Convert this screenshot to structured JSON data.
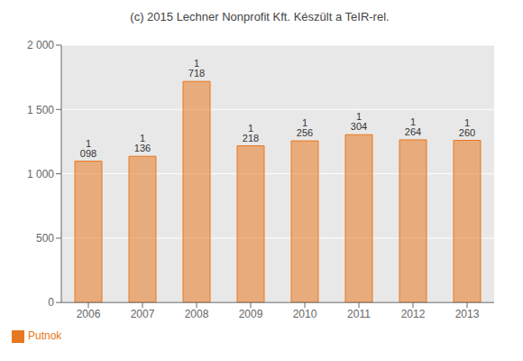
{
  "chart_data": {
    "type": "bar",
    "title": "(c) 2015 Lechner Nonprofit Kft. Készült a TeIR-rel.",
    "categories": [
      "2006",
      "2007",
      "2008",
      "2009",
      "2010",
      "2011",
      "2012",
      "2013"
    ],
    "series": [
      {
        "name": "Putnok",
        "color": "#e87820",
        "values": [
          1098,
          1136,
          1718,
          1218,
          1256,
          1304,
          1264,
          1260
        ],
        "value_labels": [
          "1 098",
          "1 136",
          "1 718",
          "1 218",
          "1 256",
          "1 304",
          "1 264",
          "1 260"
        ]
      }
    ],
    "ylim": [
      0,
      2000
    ],
    "yticks": [
      0,
      500,
      {
        "value": 1000,
        "label": "1 000"
      },
      {
        "value": 1500,
        "label": "1 500"
      },
      {
        "value": 2000,
        "label": "2 000"
      }
    ],
    "grid": true,
    "legend": "lower left",
    "data_labels": true
  }
}
